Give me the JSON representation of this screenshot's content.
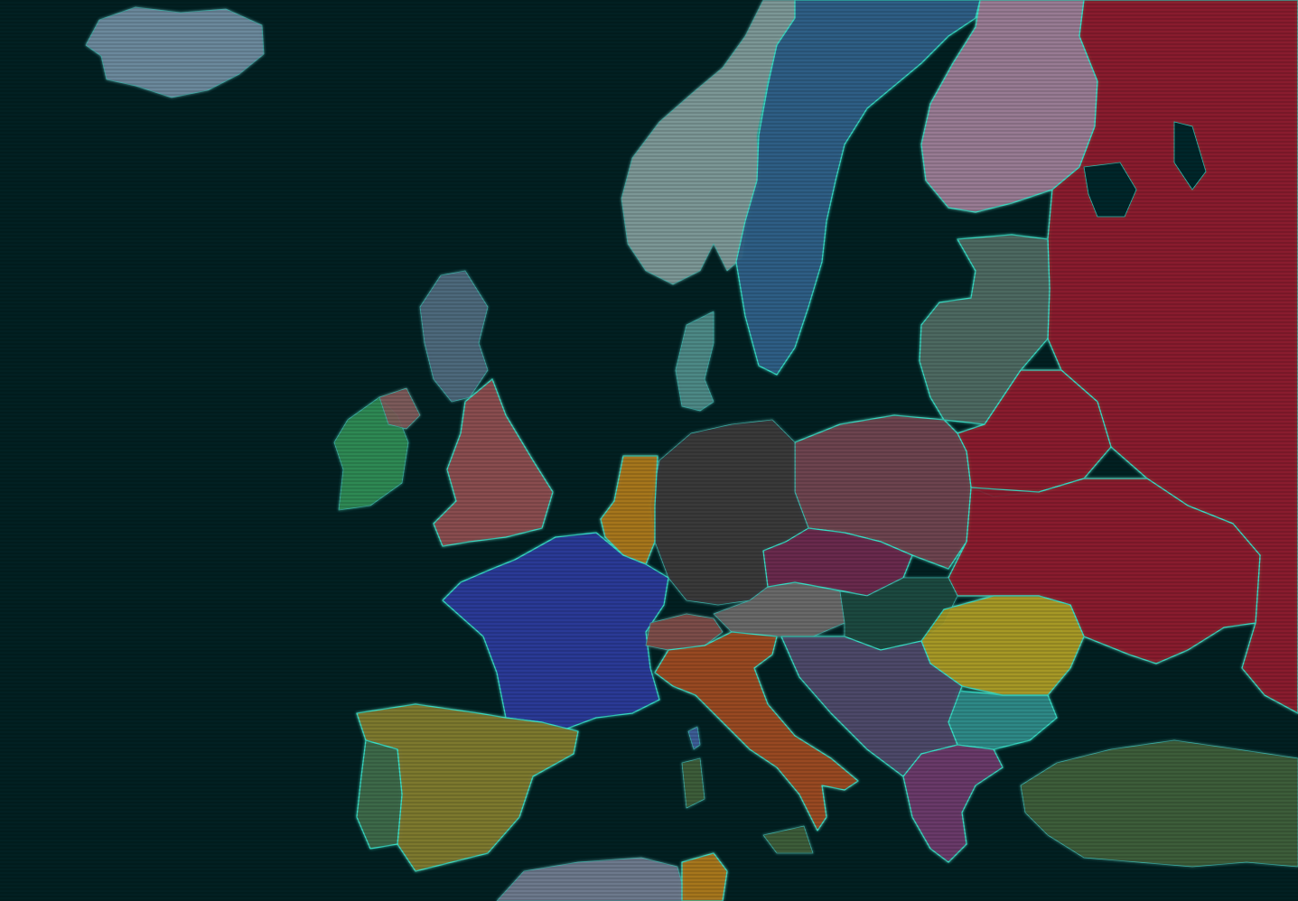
{
  "map": {
    "colors": {
      "sea": "#022022",
      "border_glow": "#38e0c8",
      "iceland": "#6d8a9e",
      "norway": "#7e9a98",
      "sweden": "#2e5f86",
      "finland": "#9a7c94",
      "russia": "#8a1e2e",
      "estonia_latvia_lithuania": "#4e6a62",
      "belarus": "#8a1e2e",
      "ukraine": "#8a1e2e",
      "poland": "#6e4650",
      "germany": "#3a3a3c",
      "netherlands_belgium": "#a8781e",
      "denmark": "#4e8a88",
      "uk": "#8a4e50",
      "scotland": "#4e6a7e",
      "ireland": "#2e8a56",
      "northern_ireland": "#7e5a5a",
      "france": "#2a3a98",
      "spain": "#7e7a30",
      "portugal": "#3e6a4a",
      "italy": "#9a4a20",
      "switzerland": "#7e4e4a",
      "austria": "#6a6a6a",
      "czechia": "#6a2a4e",
      "slovakia": "#7a2a42",
      "hungary": "#1e4a40",
      "romania": "#a89a26",
      "bulgaria": "#2e8a88",
      "balkans": "#4e4a6a",
      "greece": "#6a3a6a",
      "turkey": "#3e5e3a",
      "corsica": "#3e5e98",
      "sardinia": "#3e5e3a",
      "sicily": "#3e5e3a",
      "north_africa": "#6e7a8e"
    }
  }
}
